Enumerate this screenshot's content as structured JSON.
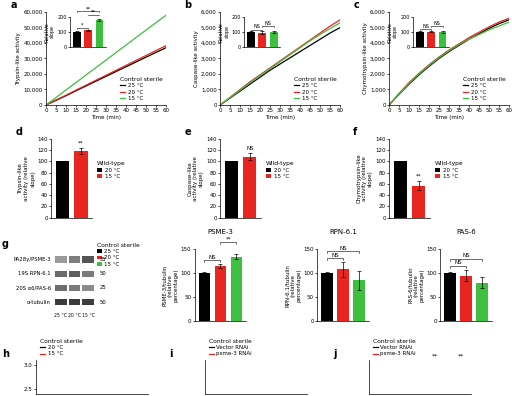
{
  "chart_data": [
    {
      "panel": "a",
      "type": "line",
      "ylabel": "Trypsin-like activity",
      "xlabel": "Time (min)",
      "x": [
        0,
        5,
        10,
        15,
        20,
        25,
        30,
        35,
        40,
        45,
        50,
        55,
        60
      ],
      "series": [
        {
          "name": "25 °C",
          "color": "#000000",
          "values": [
            0,
            3000,
            6000,
            9200,
            12300,
            15400,
            18500,
            21600,
            24700,
            27800,
            30900,
            34000,
            37000
          ]
        },
        {
          "name": "20 °C",
          "color": "#e8251f",
          "values": [
            0,
            3200,
            6300,
            9600,
            12800,
            16000,
            19200,
            22400,
            25600,
            28800,
            32000,
            35200,
            38300
          ]
        },
        {
          "name": "15 °C",
          "color": "#3fbf3f",
          "values": [
            0,
            4800,
            9700,
            14500,
            19400,
            24200,
            29000,
            33900,
            38700,
            43600,
            48400,
            53200,
            58000
          ]
        }
      ],
      "xlim": [
        0,
        60
      ],
      "xticks": [
        0,
        5,
        10,
        15,
        20,
        25,
        30,
        35,
        40,
        45,
        50,
        55,
        60
      ],
      "ylim": [
        0,
        60000
      ],
      "yticks": [
        0,
        {
          "value": 10000,
          "label": "10,000"
        },
        {
          "value": 20000,
          "label": "20,000"
        },
        {
          "value": 30000,
          "label": "30,000"
        },
        {
          "value": 40000,
          "label": "40,000"
        },
        {
          "value": 50000,
          "label": "50,000"
        },
        {
          "value": 60000,
          "label": "60,000"
        }
      ],
      "legend": "lower right",
      "legend_title": "Control sterile",
      "inset": {
        "type": "bar",
        "ylabel": "Relative slope",
        "categories": [
          "25 °C",
          "20 °C",
          "15 °C"
        ],
        "values": [
          100,
          110,
          175
        ],
        "errors": [
          3,
          4,
          6
        ],
        "colors": [
          "#000000",
          "#e8251f",
          "#3fbf3f"
        ],
        "ylim": [
          0,
          200
        ],
        "yticks": [
          0,
          100,
          200
        ],
        "tick_labels": "y",
        "significance": [
          {
            "pair": [
              0,
              1
            ],
            "label": "*"
          },
          {
            "pair": [
              1,
              2
            ],
            "label": "**"
          },
          {
            "pair": [
              0,
              2
            ],
            "label": "**"
          }
        ]
      }
    },
    {
      "panel": "b",
      "type": "line",
      "ylabel": "Caspase-like activity",
      "xlabel": "Time (min)",
      "x": [
        0,
        5,
        10,
        15,
        20,
        25,
        30,
        35,
        40,
        45,
        50,
        55,
        60
      ],
      "series": [
        {
          "name": "25 °C",
          "color": "#000000",
          "values": [
            0,
            450,
            900,
            1350,
            1800,
            2250,
            2650,
            3050,
            3450,
            3850,
            4250,
            4650,
            5000
          ]
        },
        {
          "name": "20 °C",
          "color": "#e8251f",
          "values": [
            0,
            500,
            1000,
            1500,
            1950,
            2400,
            2850,
            3300,
            3750,
            4200,
            4650,
            5100,
            5500
          ]
        },
        {
          "name": "15 °C",
          "color": "#3fbf3f",
          "values": [
            0,
            480,
            960,
            1440,
            1900,
            2350,
            2800,
            3250,
            3700,
            4150,
            4550,
            4950,
            5300
          ]
        }
      ],
      "xlim": [
        0,
        60
      ],
      "xticks": [
        0,
        5,
        10,
        15,
        20,
        25,
        30,
        35,
        40,
        45,
        50,
        55,
        60
      ],
      "ylim": [
        0,
        6000
      ],
      "yticks": [
        0,
        {
          "value": 1000,
          "label": "1,000"
        },
        {
          "value": 2000,
          "label": "2,000"
        },
        {
          "value": 3000,
          "label": "3,000"
        },
        {
          "value": 4000,
          "label": "4,000"
        },
        {
          "value": 5000,
          "label": "5,000"
        },
        {
          "value": 6000,
          "label": "6,000"
        }
      ],
      "legend": "lower right",
      "legend_title": "Control sterile",
      "inset": {
        "type": "bar",
        "ylabel": "Relative slope",
        "categories": [
          "25 °C",
          "20 °C",
          "15 °C"
        ],
        "values": [
          100,
          95,
          100
        ],
        "errors": [
          3,
          8,
          4
        ],
        "colors": [
          "#000000",
          "#e8251f",
          "#3fbf3f"
        ],
        "ylim": [
          0,
          200
        ],
        "yticks": [
          0,
          100,
          200
        ],
        "tick_labels": "y",
        "significance": [
          {
            "pair": [
              0,
              1
            ],
            "label": "NS"
          },
          {
            "pair": [
              1,
              2
            ],
            "label": "NS"
          }
        ]
      }
    },
    {
      "panel": "c",
      "type": "line",
      "ylabel": "Chymotrypsin-like activity",
      "xlabel": "Time (min)",
      "x": [
        0,
        5,
        10,
        15,
        20,
        25,
        30,
        35,
        40,
        45,
        50,
        55,
        60
      ],
      "series": [
        {
          "name": "25 °C",
          "color": "#000000",
          "values": [
            0,
            700,
            1350,
            1950,
            2500,
            3000,
            3450,
            3850,
            4250,
            4600,
            4950,
            5250,
            5500
          ]
        },
        {
          "name": "20 °C",
          "color": "#e8251f",
          "values": [
            0,
            750,
            1450,
            2050,
            2600,
            3100,
            3550,
            3950,
            4350,
            4700,
            5050,
            5350,
            5600
          ]
        },
        {
          "name": "15 °C",
          "color": "#3fbf3f",
          "values": [
            0,
            720,
            1400,
            2000,
            2550,
            3050,
            3500,
            3900,
            4250,
            4550,
            4850,
            5100,
            5350
          ]
        }
      ],
      "xlim": [
        0,
        60
      ],
      "xticks": [
        0,
        5,
        10,
        15,
        20,
        25,
        30,
        35,
        40,
        45,
        50,
        55,
        60
      ],
      "ylim": [
        0,
        6000
      ],
      "yticks": [
        0,
        {
          "value": 1000,
          "label": "1,000"
        },
        {
          "value": 2000,
          "label": "2,000"
        },
        {
          "value": 3000,
          "label": "3,000"
        },
        {
          "value": 4000,
          "label": "4,000"
        },
        {
          "value": 5000,
          "label": "5,000"
        },
        {
          "value": 6000,
          "label": "6,000"
        }
      ],
      "legend": "lower right",
      "legend_title": "Control sterile",
      "inset": {
        "type": "bar",
        "ylabel": "Relative slope",
        "categories": [
          "25 °C",
          "20 °C",
          "15 °C"
        ],
        "values": [
          100,
          102,
          101
        ],
        "errors": [
          3,
          4,
          5
        ],
        "colors": [
          "#000000",
          "#e8251f",
          "#3fbf3f"
        ],
        "ylim": [
          0,
          200
        ],
        "yticks": [
          0,
          100,
          200
        ],
        "tick_labels": "y",
        "significance": [
          {
            "pair": [
              0,
              1
            ],
            "label": "NS"
          },
          {
            "pair": [
              1,
              2
            ],
            "label": "NS"
          }
        ]
      }
    },
    {
      "panel": "d",
      "type": "bar",
      "ylabel": "Trypsin-like activity (relative slope)",
      "categories": [
        "20 °C",
        "15 °C"
      ],
      "values": [
        100,
        118
      ],
      "errors": [
        0,
        5
      ],
      "colors": [
        "#000000",
        "#e8251f"
      ],
      "ylim": [
        0,
        140
      ],
      "yticks": [
        0,
        20,
        40,
        60,
        80,
        100,
        120,
        140
      ],
      "tick_labels": "y",
      "legend": "right",
      "legend_title": "Wild-type",
      "bar_marks": [
        null,
        "**"
      ]
    },
    {
      "panel": "e",
      "type": "bar",
      "ylabel": "Caspase-like activity (relative slope)",
      "categories": [
        "20 °C",
        "15 °C"
      ],
      "values": [
        100,
        108
      ],
      "errors": [
        0,
        6
      ],
      "colors": [
        "#000000",
        "#e8251f"
      ],
      "ylim": [
        0,
        140
      ],
      "yticks": [
        0,
        20,
        40,
        60,
        80,
        100,
        120,
        140
      ],
      "tick_labels": "y",
      "legend": "right",
      "legend_title": "Wild-type",
      "bar_marks": [
        null,
        "NS"
      ]
    },
    {
      "panel": "f",
      "type": "bar",
      "ylabel": "Chymotrypsin-like activity (relative slope)",
      "categories": [
        "20 °C",
        "15 °C"
      ],
      "values": [
        100,
        57
      ],
      "errors": [
        0,
        8
      ],
      "colors": [
        "#000000",
        "#e8251f"
      ],
      "ylim": [
        0,
        140
      ],
      "yticks": [
        0,
        20,
        40,
        60,
        80,
        100,
        120,
        140
      ],
      "tick_labels": "y",
      "legend": "right",
      "legend_title": "Wild-type",
      "bar_marks": [
        null,
        "**"
      ]
    },
    {
      "type": "bar",
      "title": "PSME-3",
      "ylabel": "PSME-3/tubulin (relative percentage)",
      "categories": [
        "25 °C",
        "20 °C",
        "15 °C"
      ],
      "values": [
        100,
        115,
        135
      ],
      "errors": [
        2,
        4,
        6
      ],
      "colors": [
        "#000000",
        "#e8251f",
        "#3fbf3f"
      ],
      "ylim": [
        0,
        150
      ],
      "yticks": [
        0,
        50,
        100,
        150
      ],
      "tick_labels": "y",
      "legend": "left",
      "legend_title": "Control sterile",
      "significance": [
        {
          "pair": [
            0,
            1
          ],
          "label": "NS"
        },
        {
          "pair": [
            1,
            2
          ],
          "label": "**"
        }
      ]
    },
    {
      "type": "bar",
      "title": "RPN-6.1",
      "ylabel": "RPN-6.1/tubulin (relative percentage)",
      "categories": [
        "25 °C",
        "20 °C",
        "15 °C"
      ],
      "values": [
        100,
        108,
        85
      ],
      "errors": [
        3,
        15,
        20
      ],
      "colors": [
        "#000000",
        "#e8251f",
        "#3fbf3f"
      ],
      "ylim": [
        0,
        150
      ],
      "yticks": [
        0,
        50,
        100,
        150
      ],
      "tick_labels": "y",
      "significance": [
        {
          "pair": [
            0,
            1
          ],
          "label": "NS"
        },
        {
          "pair": [
            0,
            2
          ],
          "label": "NS"
        }
      ]
    },
    {
      "type": "bar",
      "title": "PAS-6",
      "ylabel": "PAS-6/tubulin (relative percentage)",
      "categories": [
        "25 °C",
        "20 °C",
        "15 °C"
      ],
      "values": [
        100,
        95,
        80
      ],
      "errors": [
        3,
        12,
        12
      ],
      "colors": [
        "#000000",
        "#e8251f",
        "#3fbf3f"
      ],
      "ylim": [
        0,
        150
      ],
      "yticks": [
        0,
        50,
        100,
        150
      ],
      "tick_labels": "y",
      "significance": [
        {
          "pair": [
            0,
            1
          ],
          "label": "NS"
        },
        {
          "pair": [
            0,
            2
          ],
          "label": "NS"
        }
      ]
    },
    {
      "panel": "h",
      "type": "line",
      "x": [],
      "series": [
        {
          "name": "20 °C",
          "color": "#000000",
          "values": []
        },
        {
          "name": "15 °C",
          "color": "#e8251f",
          "values": []
        }
      ],
      "ylim": [
        2.4,
        3.1
      ],
      "yticks": [
        2.5,
        3.0
      ],
      "tick_labels": "y",
      "legend": "top",
      "legend_title": "Control sterile"
    },
    {
      "panel": "i",
      "type": "line",
      "x": [],
      "series": [
        {
          "name": "Vector RNAi",
          "color": "#000000",
          "values": []
        },
        {
          "name": "psme-3 RNAi",
          "color": "#e8251f",
          "values": []
        }
      ],
      "tick_labels": false,
      "legend": "top",
      "legend_title": "Control sterile"
    },
    {
      "panel": "j",
      "type": "line",
      "x": [],
      "series": [
        {
          "name": "Vector RNAi",
          "color": "#000000",
          "values": []
        },
        {
          "name": "psme-3 RNAi",
          "color": "#e8251f",
          "values": []
        }
      ],
      "tick_labels": false,
      "legend": "top",
      "legend_title": "Control sterile",
      "annotations": [
        "**",
        "**"
      ]
    }
  ],
  "blot": {
    "panel": "g",
    "row_labels": [
      "PA28γ/PSME-3",
      "19S RPN-6.1",
      "20S α6/PAS-6",
      "α-tubulin"
    ],
    "kda": [
      35,
      50,
      25,
      50
    ],
    "lane_labels": [
      "25 °C",
      "20 °C",
      "15 °C"
    ]
  }
}
